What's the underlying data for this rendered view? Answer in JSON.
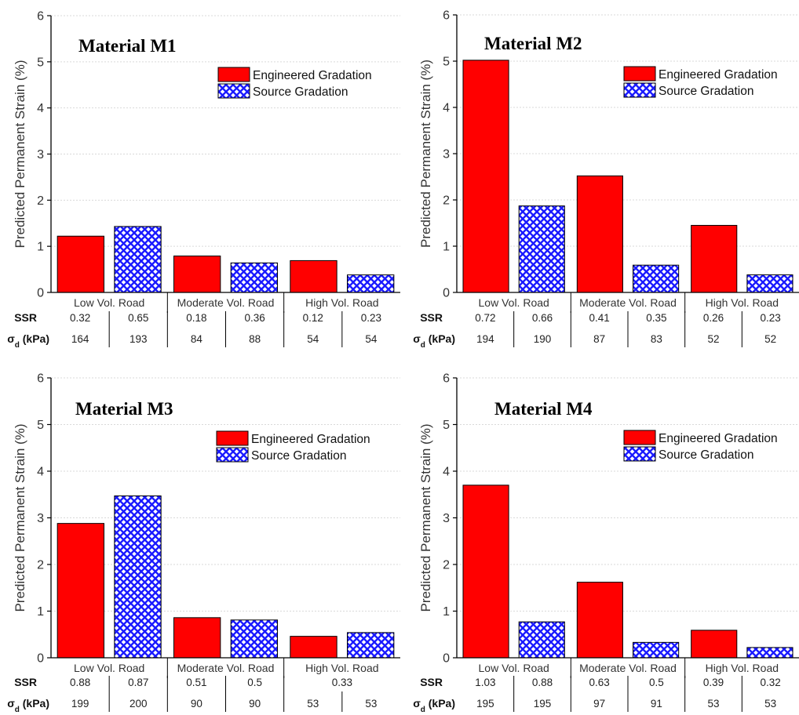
{
  "colors": {
    "engineered": "#ff0000",
    "source_pattern": "#1a1aff",
    "axis": "#000000",
    "grid": "#d9d9d9"
  },
  "chart_data": [
    {
      "type": "bar",
      "title": "Material M1",
      "ylabel": "Predicted Permanent Strain (%)",
      "xlabel": "",
      "ylim": [
        0,
        6
      ],
      "yticks": [
        "0",
        "1",
        "2",
        "3",
        "4",
        "5",
        "6"
      ],
      "grid": true,
      "legend_position": "top-right",
      "categories": [
        "Low Vol. Road",
        "Moderate Vol. Road",
        "High Vol. Road"
      ],
      "series": [
        {
          "name": "Engineered Gradation",
          "values": [
            1.22,
            0.79,
            0.69
          ]
        },
        {
          "name": "Source Gradation",
          "values": [
            1.43,
            0.64,
            0.38
          ]
        }
      ],
      "table": {
        "ssr_label": "SSR",
        "sigma_label": "σd (kPa)",
        "ssr": [
          "0.32",
          "0.65",
          "0.18",
          "0.36",
          "0.12",
          "0.23"
        ],
        "sigma": [
          "164",
          "193",
          "84",
          "88",
          "54",
          "54"
        ]
      }
    },
    {
      "type": "bar",
      "title": "Material M2",
      "ylabel": "Predicted Permanent Strain (%)",
      "xlabel": "",
      "ylim": [
        0,
        6
      ],
      "yticks": [
        "0",
        "1",
        "2",
        "3",
        "4",
        "5",
        "6"
      ],
      "grid": true,
      "legend_position": "top-right",
      "categories": [
        "Low Vol. Road",
        "Moderate Vol. Road",
        "High Vol. Road"
      ],
      "series": [
        {
          "name": "Engineered Gradation",
          "values": [
            5.02,
            2.52,
            1.45
          ]
        },
        {
          "name": "Source Gradation",
          "values": [
            1.87,
            0.59,
            0.38
          ]
        }
      ],
      "table": {
        "ssr_label": "SSR",
        "sigma_label": "σd (kPa)",
        "ssr": [
          "0.72",
          "0.66",
          "0.41",
          "0.35",
          "0.26",
          "0.23"
        ],
        "sigma": [
          "194",
          "190",
          "87",
          "83",
          "52",
          "52"
        ]
      }
    },
    {
      "type": "bar",
      "title": "Material M3",
      "ylabel": "Predicted Permanent Strain (%)",
      "xlabel": "",
      "ylim": [
        0,
        6
      ],
      "yticks": [
        "0",
        "1",
        "2",
        "3",
        "4",
        "5",
        "6"
      ],
      "grid": true,
      "legend_position": "top-right",
      "categories": [
        "Low Vol. Road",
        "Moderate Vol. Road",
        "High Vol. Road"
      ],
      "series": [
        {
          "name": "Engineered Gradation",
          "values": [
            2.88,
            0.86,
            0.46
          ]
        },
        {
          "name": "Source Gradation",
          "values": [
            3.47,
            0.81,
            0.54
          ]
        }
      ],
      "table": {
        "ssr_label": "SSR",
        "sigma_label": "σd (kPa)",
        "ssr": [
          "0.88",
          "0.87",
          "0.51",
          "0.5",
          "0.33",
          null
        ],
        "sigma": [
          "199",
          "200",
          "90",
          "90",
          "53",
          "53"
        ]
      }
    },
    {
      "type": "bar",
      "title": "Material M4",
      "ylabel": "Predicted Permanent Strain (%)",
      "xlabel": "",
      "ylim": [
        0,
        6
      ],
      "yticks": [
        "0",
        "1",
        "2",
        "3",
        "4",
        "5",
        "6"
      ],
      "grid": true,
      "legend_position": "top-right",
      "categories": [
        "Low Vol. Road",
        "Moderate Vol. Road",
        "High Vol. Road"
      ],
      "series": [
        {
          "name": "Engineered Gradation",
          "values": [
            3.7,
            1.62,
            0.59
          ]
        },
        {
          "name": "Source Gradation",
          "values": [
            0.77,
            0.33,
            0.22
          ]
        }
      ],
      "table": {
        "ssr_label": "SSR",
        "sigma_label": "σd (kPa)",
        "ssr": [
          "1.03",
          "0.88",
          "0.63",
          "0.5",
          "0.39",
          "0.32"
        ],
        "sigma": [
          "195",
          "195",
          "97",
          "91",
          "53",
          "53"
        ]
      }
    }
  ]
}
